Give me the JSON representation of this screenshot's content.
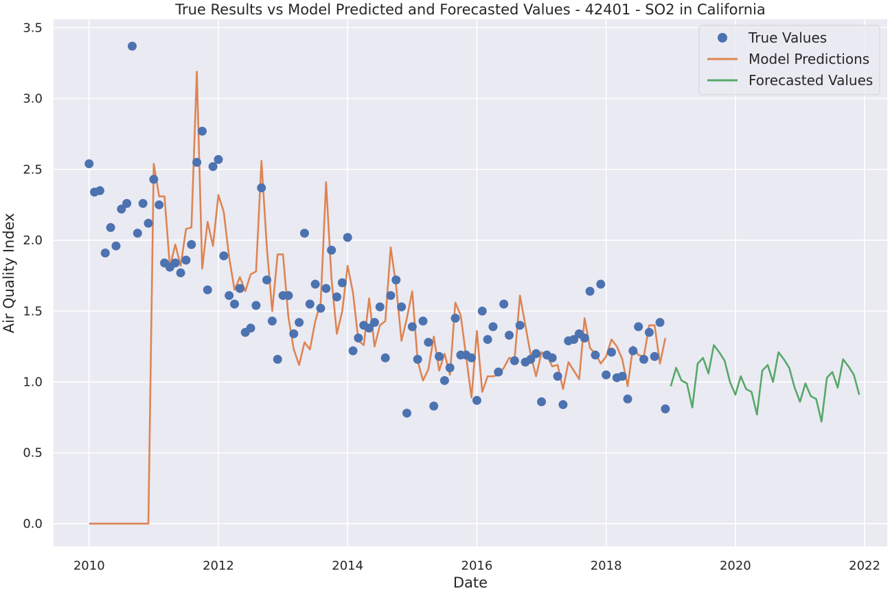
{
  "chart_data": {
    "type": "line",
    "title": "True Results vs Model Predicted and Forecasted Values - 42401 - SO2 in California",
    "xlabel": "Date",
    "ylabel": "Air Quality Index",
    "xlim": [
      2009.45,
      2022.35
    ],
    "ylim": [
      -0.16,
      3.56
    ],
    "x_ticks": [
      {
        "value": 2010,
        "label": "2010"
      },
      {
        "value": 2012,
        "label": "2012"
      },
      {
        "value": 2014,
        "label": "2014"
      },
      {
        "value": 2016,
        "label": "2016"
      },
      {
        "value": 2018,
        "label": "2018"
      },
      {
        "value": 2020,
        "label": "2020"
      },
      {
        "value": 2022,
        "label": "2022"
      }
    ],
    "y_ticks": [
      {
        "value": 0.0,
        "label": "0.0"
      },
      {
        "value": 0.5,
        "label": "0.5"
      },
      {
        "value": 1.0,
        "label": "1.0"
      },
      {
        "value": 1.5,
        "label": "1.5"
      },
      {
        "value": 2.0,
        "label": "2.0"
      },
      {
        "value": 2.5,
        "label": "2.5"
      },
      {
        "value": 3.0,
        "label": "3.0"
      },
      {
        "value": 3.5,
        "label": "3.5"
      }
    ],
    "grid": true,
    "legend": {
      "position": "top-right"
    },
    "colors": {
      "background": "#eaeaf2",
      "grid": "#ffffff",
      "true": "#4c72b0",
      "model": "#dd8452",
      "forecast": "#55a868"
    },
    "series": [
      {
        "name": "True Values",
        "kind": "scatter",
        "x_start": "2010-01",
        "values": [
          2.54,
          2.34,
          2.35,
          1.91,
          2.09,
          1.96,
          2.22,
          2.26,
          3.37,
          2.05,
          2.26,
          2.12,
          2.43,
          2.25,
          1.84,
          1.81,
          1.84,
          1.77,
          1.86,
          1.97,
          2.55,
          2.77,
          1.65,
          2.52,
          2.57,
          1.89,
          1.61,
          1.55,
          1.66,
          1.35,
          1.38,
          1.54,
          2.37,
          1.72,
          1.43,
          1.16,
          1.61,
          1.61,
          1.34,
          1.42,
          2.05,
          1.55,
          1.69,
          1.52,
          1.66,
          1.93,
          1.6,
          1.7,
          2.02,
          1.22,
          1.31,
          1.4,
          1.38,
          1.42,
          1.53,
          1.17,
          1.61,
          1.72,
          1.53,
          0.78,
          1.39,
          1.16,
          1.43,
          1.28,
          0.83,
          1.18,
          1.01,
          1.1,
          1.45,
          1.19,
          1.19,
          1.17,
          0.87,
          1.5,
          1.3,
          1.39,
          1.07,
          1.55,
          1.33,
          1.15,
          1.4,
          1.14,
          1.16,
          1.2,
          0.86,
          1.19,
          1.17,
          1.04,
          0.84,
          1.29,
          1.3,
          1.34,
          1.31,
          1.64,
          1.19,
          1.69,
          1.05,
          1.21,
          1.03,
          1.04,
          0.88,
          1.22,
          1.39,
          1.16,
          1.35,
          1.18,
          1.42,
          0.81
        ]
      },
      {
        "name": "Model Predictions",
        "kind": "line",
        "x_start": "2010-01",
        "values": [
          0,
          0,
          0,
          0,
          0,
          0,
          0,
          0,
          0,
          0,
          0,
          0,
          2.54,
          2.31,
          2.31,
          1.81,
          1.97,
          1.82,
          2.08,
          2.09,
          3.19,
          1.8,
          2.13,
          1.96,
          2.32,
          2.2,
          1.88,
          1.65,
          1.74,
          1.64,
          1.76,
          1.78,
          2.56,
          1.95,
          1.5,
          1.9,
          1.9,
          1.46,
          1.23,
          1.12,
          1.28,
          1.23,
          1.43,
          1.56,
          2.41,
          1.73,
          1.34,
          1.5,
          1.82,
          1.63,
          1.29,
          1.26,
          1.59,
          1.25,
          1.4,
          1.43,
          1.95,
          1.68,
          1.29,
          1.45,
          1.64,
          1.15,
          1.01,
          1.09,
          1.32,
          1.08,
          1.2,
          1.05,
          1.56,
          1.47,
          1.18,
          0.89,
          1.36,
          0.93,
          1.04,
          1.04,
          1.05,
          1.1,
          1.17,
          1.16,
          1.61,
          1.4,
          1.19,
          1.04,
          1.21,
          1.19,
          1.11,
          1.12,
          0.95,
          1.14,
          1.08,
          1.02,
          1.45,
          1.24,
          1.2,
          1.13,
          1.18,
          1.3,
          1.25,
          1.16,
          0.97,
          1.25,
          1.19,
          1.18,
          1.4,
          1.4,
          1.13,
          1.31
        ]
      },
      {
        "name": "Forecasted Values",
        "kind": "line",
        "x_start": "2019-01",
        "values": [
          0.97,
          1.1,
          1.01,
          0.99,
          0.82,
          1.13,
          1.17,
          1.06,
          1.26,
          1.21,
          1.15,
          1.0,
          0.91,
          1.04,
          0.95,
          0.93,
          0.77,
          1.08,
          1.12,
          1.0,
          1.21,
          1.16,
          1.1,
          0.96,
          0.86,
          0.99,
          0.9,
          0.88,
          0.72,
          1.03,
          1.07,
          0.96,
          1.16,
          1.11,
          1.05,
          0.91
        ]
      }
    ]
  }
}
